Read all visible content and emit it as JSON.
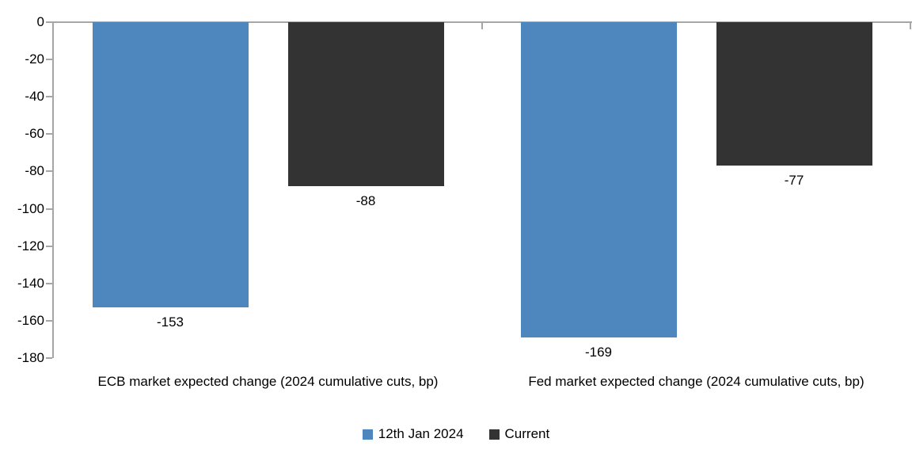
{
  "chart_data": {
    "type": "bar",
    "title": "",
    "xlabel": "",
    "ylabel": "",
    "categories": [
      "ECB market expected change (2024 cumulative cuts, bp)",
      "Fed market expected change (2024 cumulative cuts, bp)"
    ],
    "series": [
      {
        "name": "12th Jan 2024",
        "color": "#4E87BD",
        "values": [
          -153,
          -169
        ]
      },
      {
        "name": "Current",
        "color": "#333333",
        "values": [
          -88,
          -77
        ]
      }
    ],
    "data_labels": [
      [
        "-153",
        "-169"
      ],
      [
        "-88",
        "-77"
      ]
    ],
    "ylim": [
      -180,
      0
    ],
    "ytick_step": -20,
    "ytick_labels": [
      "0",
      "-20",
      "-40",
      "-60",
      "-80",
      "-100",
      "-120",
      "-140",
      "-160",
      "-180"
    ],
    "grid": false,
    "legend_position": "bottom-center",
    "axis_color": "#A6A6A6",
    "text_color": "#000000",
    "background_color": "#FFFFFF"
  }
}
